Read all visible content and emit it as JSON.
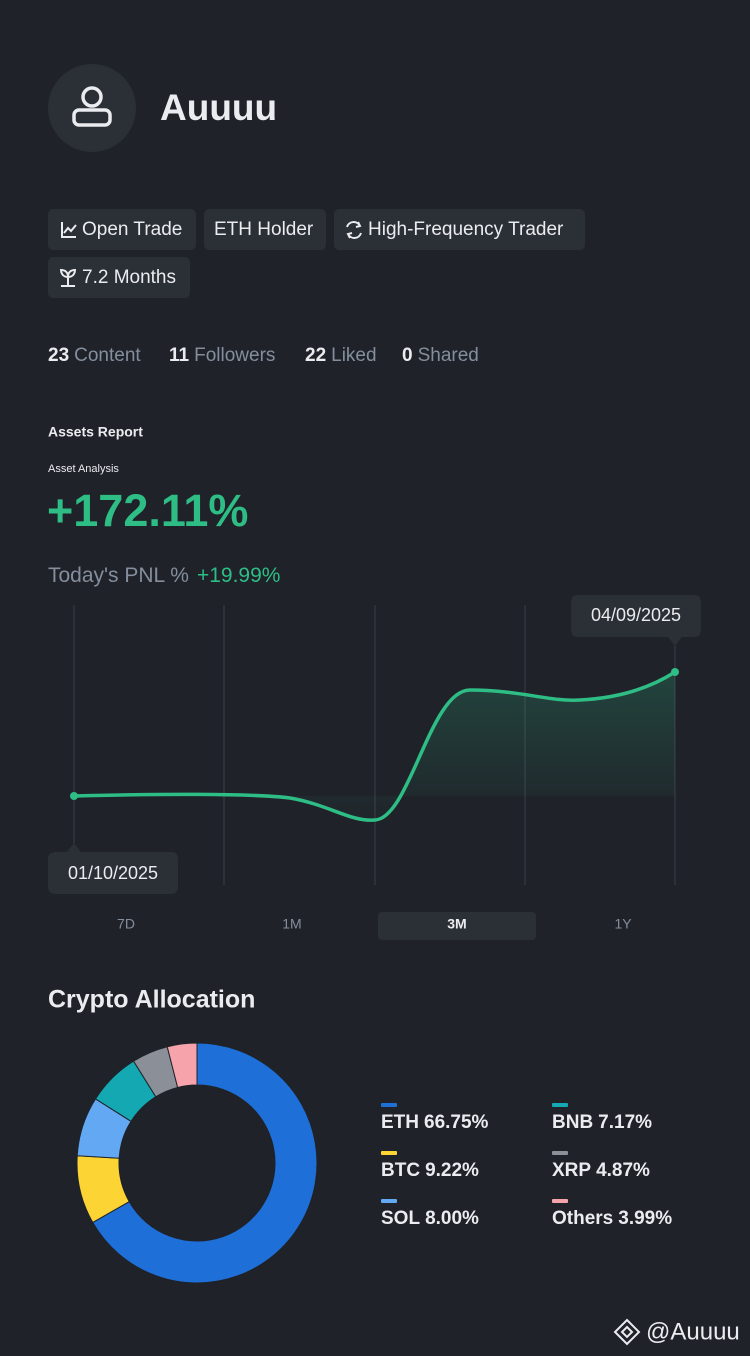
{
  "profile": {
    "name": "Auuuu"
  },
  "tags": [
    "Open Trade",
    "ETH Holder",
    "High-Frequency Trader",
    "7.2 Months"
  ],
  "stats": [
    {
      "value": 23,
      "label": "Content"
    },
    {
      "value": 11,
      "label": "Followers"
    },
    {
      "value": 22,
      "label": "Liked"
    },
    {
      "value": 0,
      "label": "Shared"
    }
  ],
  "assets": {
    "title": "Assets Report",
    "subtitle": "Asset Analysis",
    "total": "+172.11%",
    "pnl_label": "Today's PNL %",
    "pnl": "+19.99%"
  },
  "chart": {
    "start_date": "01/10/2025",
    "end_date": "04/09/2025",
    "ranges": [
      "7D",
      "1M",
      "3M",
      "1Y"
    ],
    "selected": "3M"
  },
  "chart_data": {
    "type": "pie",
    "title": "Crypto Allocation",
    "categories": [
      "ETH",
      "BTC",
      "SOL",
      "BNB",
      "XRP",
      "Others"
    ],
    "values": [
      66.75,
      9.22,
      8.0,
      7.17,
      4.87,
      3.99
    ],
    "value_labels": [
      "66.75%",
      "9.22%",
      "8.00%",
      "7.17%",
      "4.87%",
      "3.99%"
    ],
    "colors": [
      "#1f6fd8",
      "#fcd535",
      "#62a8f2",
      "#14a8b2",
      "#8a8f98",
      "#f6a3ab"
    ]
  },
  "watermark": "@Auuuu"
}
